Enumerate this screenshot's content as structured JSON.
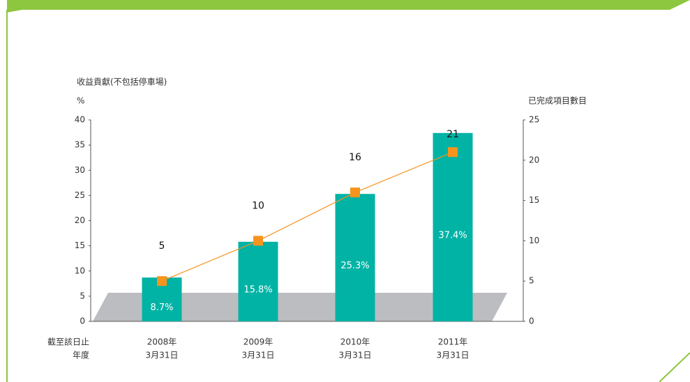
{
  "chart_data": {
    "type": "combo",
    "y_label": "收益貢獻(不包括停車場)",
    "y_unit": "%",
    "y2_label": "已完成項目數目",
    "x_label": [
      "截至該日止",
      "年度"
    ],
    "categories": [
      [
        "2008年",
        "3月31日"
      ],
      [
        "2009年",
        "3月31日"
      ],
      [
        "2010年",
        "3月31日"
      ],
      [
        "2011年",
        "3月31日"
      ]
    ],
    "series": [
      {
        "type": "bar",
        "color": "#00b3a5",
        "values": [
          8.7,
          15.8,
          25.3,
          37.4
        ],
        "value_labels": [
          "8.7%",
          "15.8%",
          "25.3%",
          "37.4%"
        ]
      },
      {
        "type": "line",
        "axis": "y2",
        "color": "#f7941d",
        "values": [
          5,
          10,
          16,
          21
        ]
      }
    ],
    "ylim": [
      0,
      40
    ],
    "yticks": [
      0,
      5,
      10,
      15,
      20,
      25,
      30,
      35,
      40
    ],
    "y2lim": [
      0,
      25
    ],
    "y2ticks": [
      0,
      5,
      10,
      15,
      20,
      25
    ]
  }
}
